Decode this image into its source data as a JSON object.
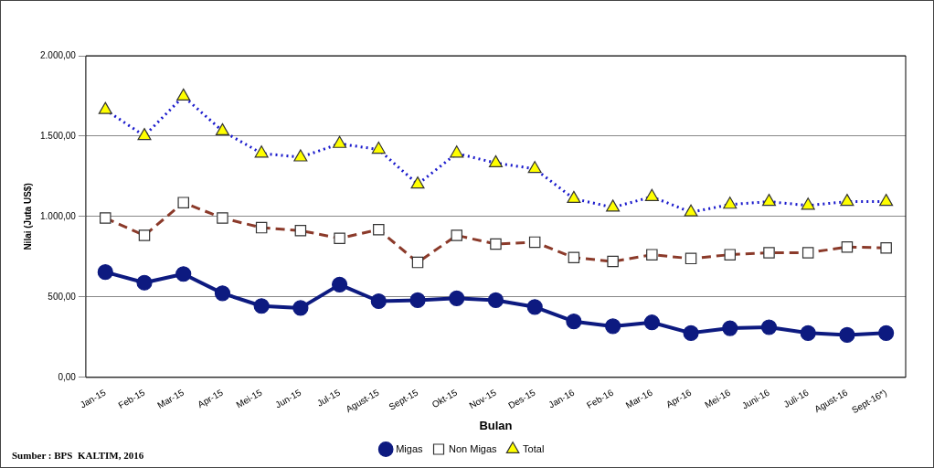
{
  "chart_data": {
    "type": "line",
    "ylabel": "Nilai (Juta US$)",
    "xlabel": "Bulan",
    "annotations": [
      "Sumber : BPS  KALTIM, 2016"
    ],
    "categories": [
      "Jan-15",
      "Feb-15",
      "Mar-15",
      "Apr-15",
      "Mei-15",
      "Jun-15",
      "Jul-15",
      "Agust-15",
      "Sept-15",
      "Okt-15",
      "Nov-15",
      "Des-15",
      "Jan-16",
      "Feb-16",
      "Mar-16",
      "Apr-16",
      "Mei-16",
      "Juni-16",
      "Juli-16",
      "Agust-16",
      "Sept-16*)"
    ],
    "series": [
      {
        "name": "Migas",
        "color": "#0d1a80",
        "marker": "circle",
        "line_style": "solid",
        "values": [
          655,
          589,
          643,
          523,
          444,
          432,
          577,
          474,
          480,
          492,
          480,
          438,
          348,
          318,
          342,
          276,
          306,
          312,
          276,
          264,
          276
        ]
      },
      {
        "name": "Non Migas",
        "color": "#8b3a2a",
        "marker": "square",
        "line_style": "dashed",
        "values": [
          991,
          883,
          1087,
          991,
          931,
          913,
          865,
          919,
          715,
          883,
          829,
          841,
          745,
          721,
          763,
          739,
          763,
          775,
          775,
          811,
          805
        ]
      },
      {
        "name": "Total",
        "color": "#1a1acc",
        "marker": "triangle",
        "line_style": "dotted",
        "values": [
          1664,
          1502,
          1748,
          1532,
          1393,
          1369,
          1453,
          1417,
          1201,
          1393,
          1333,
          1297,
          1111,
          1057,
          1123,
          1027,
          1075,
          1093,
          1069,
          1093,
          1093
        ]
      }
    ],
    "ylim": [
      0,
      2000
    ],
    "yticks": [
      {
        "value": 0,
        "label": "0,00"
      },
      {
        "value": 500,
        "label": "500,00"
      },
      {
        "value": 1000,
        "label": "1.000,00"
      },
      {
        "value": 1500,
        "label": "1.500,00"
      },
      {
        "value": 2000,
        "label": "2.000,00"
      }
    ],
    "grid": "y",
    "legend": "bottom"
  }
}
